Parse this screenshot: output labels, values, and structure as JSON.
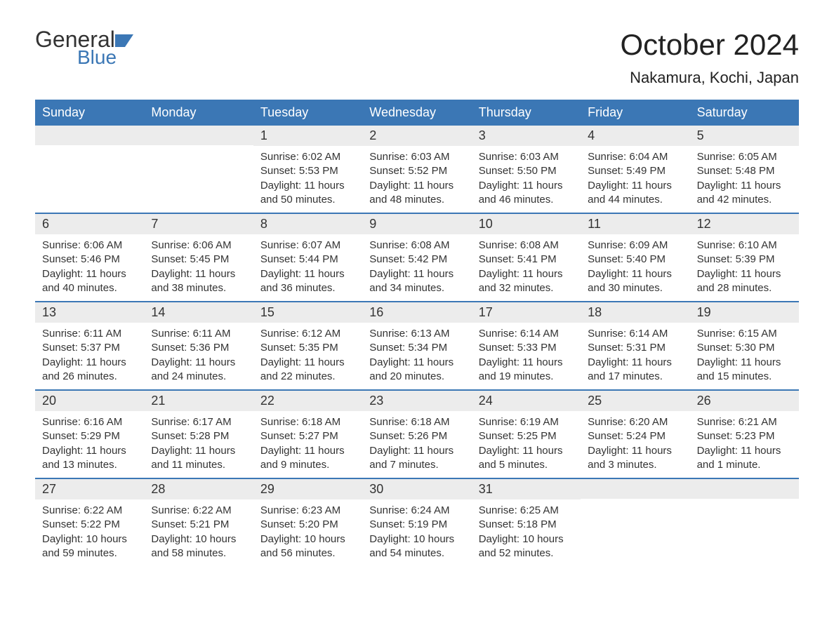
{
  "brand": {
    "name_top": "General",
    "name_bottom": "Blue",
    "top_color": "#333333",
    "bottom_color": "#3b77b5",
    "flag_color": "#3b77b5"
  },
  "header": {
    "title": "October 2024",
    "location": "Nakamura, Kochi, Japan",
    "title_fontsize": 42,
    "location_fontsize": 22,
    "title_color": "#222222"
  },
  "calendar": {
    "header_bg": "#3b77b5",
    "header_fg": "#ffffff",
    "daynum_bg": "#ececec",
    "week_divider_color": "#3b77b5",
    "text_color": "#333333",
    "body_fontsize": 15,
    "daynum_fontsize": 18,
    "header_fontsize": 18,
    "days": [
      "Sunday",
      "Monday",
      "Tuesday",
      "Wednesday",
      "Thursday",
      "Friday",
      "Saturday"
    ],
    "weeks": [
      [
        {
          "day": "",
          "sunrise": "",
          "sunset": "",
          "daylight": ""
        },
        {
          "day": "",
          "sunrise": "",
          "sunset": "",
          "daylight": ""
        },
        {
          "day": "1",
          "sunrise": "Sunrise: 6:02 AM",
          "sunset": "Sunset: 5:53 PM",
          "daylight": "Daylight: 11 hours and 50 minutes."
        },
        {
          "day": "2",
          "sunrise": "Sunrise: 6:03 AM",
          "sunset": "Sunset: 5:52 PM",
          "daylight": "Daylight: 11 hours and 48 minutes."
        },
        {
          "day": "3",
          "sunrise": "Sunrise: 6:03 AM",
          "sunset": "Sunset: 5:50 PM",
          "daylight": "Daylight: 11 hours and 46 minutes."
        },
        {
          "day": "4",
          "sunrise": "Sunrise: 6:04 AM",
          "sunset": "Sunset: 5:49 PM",
          "daylight": "Daylight: 11 hours and 44 minutes."
        },
        {
          "day": "5",
          "sunrise": "Sunrise: 6:05 AM",
          "sunset": "Sunset: 5:48 PM",
          "daylight": "Daylight: 11 hours and 42 minutes."
        }
      ],
      [
        {
          "day": "6",
          "sunrise": "Sunrise: 6:06 AM",
          "sunset": "Sunset: 5:46 PM",
          "daylight": "Daylight: 11 hours and 40 minutes."
        },
        {
          "day": "7",
          "sunrise": "Sunrise: 6:06 AM",
          "sunset": "Sunset: 5:45 PM",
          "daylight": "Daylight: 11 hours and 38 minutes."
        },
        {
          "day": "8",
          "sunrise": "Sunrise: 6:07 AM",
          "sunset": "Sunset: 5:44 PM",
          "daylight": "Daylight: 11 hours and 36 minutes."
        },
        {
          "day": "9",
          "sunrise": "Sunrise: 6:08 AM",
          "sunset": "Sunset: 5:42 PM",
          "daylight": "Daylight: 11 hours and 34 minutes."
        },
        {
          "day": "10",
          "sunrise": "Sunrise: 6:08 AM",
          "sunset": "Sunset: 5:41 PM",
          "daylight": "Daylight: 11 hours and 32 minutes."
        },
        {
          "day": "11",
          "sunrise": "Sunrise: 6:09 AM",
          "sunset": "Sunset: 5:40 PM",
          "daylight": "Daylight: 11 hours and 30 minutes."
        },
        {
          "day": "12",
          "sunrise": "Sunrise: 6:10 AM",
          "sunset": "Sunset: 5:39 PM",
          "daylight": "Daylight: 11 hours and 28 minutes."
        }
      ],
      [
        {
          "day": "13",
          "sunrise": "Sunrise: 6:11 AM",
          "sunset": "Sunset: 5:37 PM",
          "daylight": "Daylight: 11 hours and 26 minutes."
        },
        {
          "day": "14",
          "sunrise": "Sunrise: 6:11 AM",
          "sunset": "Sunset: 5:36 PM",
          "daylight": "Daylight: 11 hours and 24 minutes."
        },
        {
          "day": "15",
          "sunrise": "Sunrise: 6:12 AM",
          "sunset": "Sunset: 5:35 PM",
          "daylight": "Daylight: 11 hours and 22 minutes."
        },
        {
          "day": "16",
          "sunrise": "Sunrise: 6:13 AM",
          "sunset": "Sunset: 5:34 PM",
          "daylight": "Daylight: 11 hours and 20 minutes."
        },
        {
          "day": "17",
          "sunrise": "Sunrise: 6:14 AM",
          "sunset": "Sunset: 5:33 PM",
          "daylight": "Daylight: 11 hours and 19 minutes."
        },
        {
          "day": "18",
          "sunrise": "Sunrise: 6:14 AM",
          "sunset": "Sunset: 5:31 PM",
          "daylight": "Daylight: 11 hours and 17 minutes."
        },
        {
          "day": "19",
          "sunrise": "Sunrise: 6:15 AM",
          "sunset": "Sunset: 5:30 PM",
          "daylight": "Daylight: 11 hours and 15 minutes."
        }
      ],
      [
        {
          "day": "20",
          "sunrise": "Sunrise: 6:16 AM",
          "sunset": "Sunset: 5:29 PM",
          "daylight": "Daylight: 11 hours and 13 minutes."
        },
        {
          "day": "21",
          "sunrise": "Sunrise: 6:17 AM",
          "sunset": "Sunset: 5:28 PM",
          "daylight": "Daylight: 11 hours and 11 minutes."
        },
        {
          "day": "22",
          "sunrise": "Sunrise: 6:18 AM",
          "sunset": "Sunset: 5:27 PM",
          "daylight": "Daylight: 11 hours and 9 minutes."
        },
        {
          "day": "23",
          "sunrise": "Sunrise: 6:18 AM",
          "sunset": "Sunset: 5:26 PM",
          "daylight": "Daylight: 11 hours and 7 minutes."
        },
        {
          "day": "24",
          "sunrise": "Sunrise: 6:19 AM",
          "sunset": "Sunset: 5:25 PM",
          "daylight": "Daylight: 11 hours and 5 minutes."
        },
        {
          "day": "25",
          "sunrise": "Sunrise: 6:20 AM",
          "sunset": "Sunset: 5:24 PM",
          "daylight": "Daylight: 11 hours and 3 minutes."
        },
        {
          "day": "26",
          "sunrise": "Sunrise: 6:21 AM",
          "sunset": "Sunset: 5:23 PM",
          "daylight": "Daylight: 11 hours and 1 minute."
        }
      ],
      [
        {
          "day": "27",
          "sunrise": "Sunrise: 6:22 AM",
          "sunset": "Sunset: 5:22 PM",
          "daylight": "Daylight: 10 hours and 59 minutes."
        },
        {
          "day": "28",
          "sunrise": "Sunrise: 6:22 AM",
          "sunset": "Sunset: 5:21 PM",
          "daylight": "Daylight: 10 hours and 58 minutes."
        },
        {
          "day": "29",
          "sunrise": "Sunrise: 6:23 AM",
          "sunset": "Sunset: 5:20 PM",
          "daylight": "Daylight: 10 hours and 56 minutes."
        },
        {
          "day": "30",
          "sunrise": "Sunrise: 6:24 AM",
          "sunset": "Sunset: 5:19 PM",
          "daylight": "Daylight: 10 hours and 54 minutes."
        },
        {
          "day": "31",
          "sunrise": "Sunrise: 6:25 AM",
          "sunset": "Sunset: 5:18 PM",
          "daylight": "Daylight: 10 hours and 52 minutes."
        },
        {
          "day": "",
          "sunrise": "",
          "sunset": "",
          "daylight": ""
        },
        {
          "day": "",
          "sunrise": "",
          "sunset": "",
          "daylight": ""
        }
      ]
    ]
  }
}
